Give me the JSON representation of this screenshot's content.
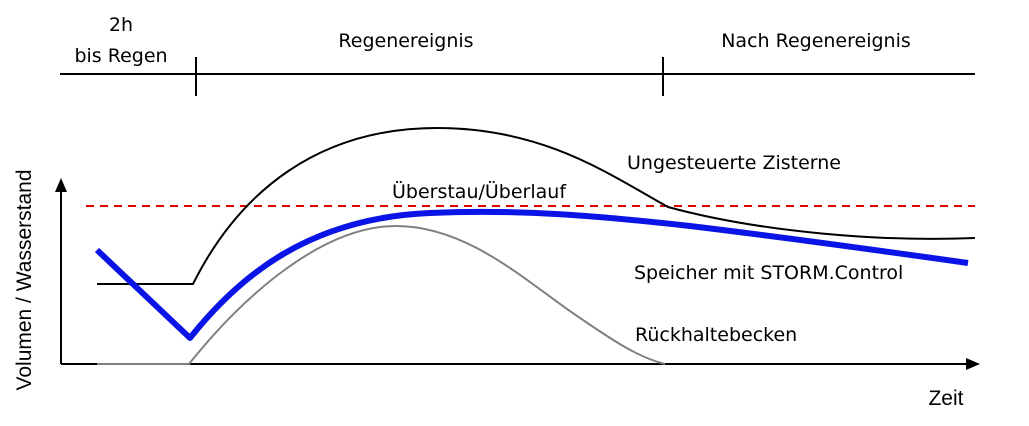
{
  "phases": {
    "before": {
      "line1": "2h",
      "line2": "bis Regen"
    },
    "during": "Regenereignis",
    "after": "Nach Regenereignis"
  },
  "axes": {
    "y_label": "Volumen / Wasserstand",
    "x_label": "Zeit"
  },
  "threshold": {
    "label": "Überstau/Überlauf",
    "color": "#e00000"
  },
  "curves": {
    "uncontrolled": {
      "label": "Ungesteuerte Zisterne",
      "color": "#000000"
    },
    "storm_control": {
      "label": "Speicher mit STORM.Control",
      "color": "#0a14e6"
    },
    "retention": {
      "label": "Rückhaltebecken",
      "color": "#808080"
    }
  }
}
